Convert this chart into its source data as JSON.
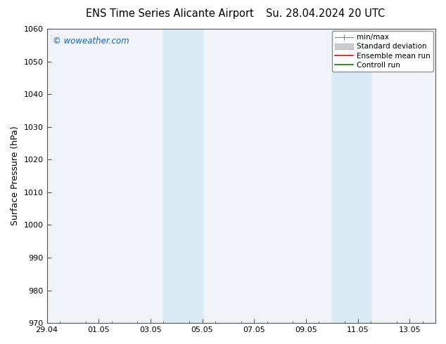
{
  "title_left": "ENS Time Series Alicante Airport",
  "title_right": "Su. 28.04.2024 20 UTC",
  "ylabel": "Surface Pressure (hPa)",
  "ylim": [
    970,
    1060
  ],
  "yticks": [
    970,
    980,
    990,
    1000,
    1010,
    1020,
    1030,
    1040,
    1050,
    1060
  ],
  "xlim": [
    0,
    15.0
  ],
  "xtick_labels": [
    "29.04",
    "01.05",
    "03.05",
    "05.05",
    "07.05",
    "09.05",
    "11.05",
    "13.05"
  ],
  "xtick_positions": [
    0,
    2,
    4,
    6,
    8,
    10,
    12,
    14
  ],
  "shaded_bands": [
    {
      "xstart": 4.5,
      "xend": 6.0,
      "color": "#daeaf5"
    },
    {
      "xstart": 11.0,
      "xend": 12.5,
      "color": "#daeaf5"
    }
  ],
  "watermark": "© woweather.com",
  "watermark_color": "#1565C0",
  "bg_color": "#ffffff",
  "plot_bg_color": "#f0f4f8",
  "spine_color": "#555555",
  "tick_color": "#333333",
  "title_fontsize": 10.5,
  "ylabel_fontsize": 9,
  "tick_fontsize": 8,
  "watermark_fontsize": 8.5,
  "legend_fontsize": 7.5
}
